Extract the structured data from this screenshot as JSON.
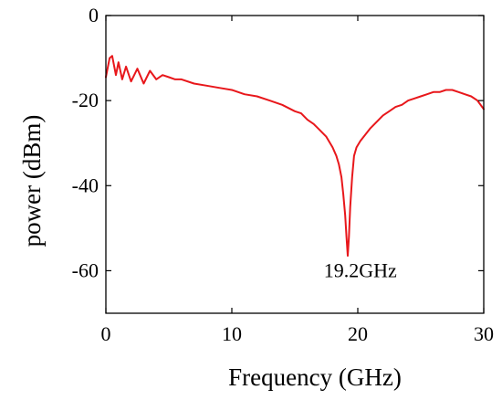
{
  "chart_data": {
    "type": "line",
    "title": "",
    "xlabel": "Frequency (GHz)",
    "ylabel": "power (dBm)",
    "xlim": [
      0,
      30
    ],
    "ylim": [
      -70,
      0
    ],
    "xticks": [
      0,
      10,
      20,
      30
    ],
    "yticks": [
      0,
      -20,
      -40,
      -60
    ],
    "xtick_labels": [
      "0",
      "10",
      "20",
      "30"
    ],
    "ytick_labels": [
      "0",
      "-20",
      "-40",
      "-60"
    ],
    "grid": false,
    "legend": "none",
    "line_color": "#e8171b",
    "annotations": [
      {
        "text": "19.2GHz",
        "x": 20.2,
        "y": -61.5
      }
    ],
    "series": [
      {
        "x": [
          0,
          0.3,
          0.5,
          0.8,
          1.0,
          1.3,
          1.6,
          2.0,
          2.5,
          3.0,
          3.5,
          4.0,
          4.5,
          5.0,
          5.5,
          6.0,
          7.0,
          8.0,
          9.0,
          10.0,
          11.0,
          12.0,
          13.0,
          14.0,
          15.0,
          15.5,
          16.0,
          16.5,
          17.0,
          17.5,
          18.0,
          18.3,
          18.5,
          18.7,
          18.85,
          19.0,
          19.1,
          19.2,
          19.3,
          19.4,
          19.55,
          19.7,
          19.9,
          20.2,
          20.6,
          21.0,
          21.5,
          22.0,
          22.5,
          23.0,
          23.5,
          24.0,
          24.5,
          25.0,
          25.5,
          26.0,
          26.5,
          27.0,
          27.5,
          28.0,
          28.5,
          29.0,
          29.5,
          30.0
        ],
        "values": [
          -14.5,
          -10.0,
          -9.5,
          -14.0,
          -11.0,
          -15.0,
          -12.0,
          -15.5,
          -12.5,
          -16.0,
          -13.0,
          -15.0,
          -14.0,
          -14.5,
          -15.0,
          -15.0,
          -16.0,
          -16.5,
          -17.0,
          -17.5,
          -18.5,
          -19.0,
          -20.0,
          -21.0,
          -22.5,
          -23.0,
          -24.5,
          -25.5,
          -27.0,
          -28.5,
          -31.0,
          -33.0,
          -35.0,
          -38.0,
          -42.0,
          -47.0,
          -52.0,
          -56.5,
          -52.0,
          -45.0,
          -38.0,
          -33.0,
          -31.0,
          -29.5,
          -28.0,
          -26.5,
          -25.0,
          -23.5,
          -22.5,
          -21.5,
          -21.0,
          -20.0,
          -19.5,
          -19.0,
          -18.5,
          -18.0,
          -18.0,
          -17.5,
          -17.5,
          -18.0,
          -18.5,
          -19.0,
          -20.0,
          -22.0
        ]
      }
    ]
  }
}
